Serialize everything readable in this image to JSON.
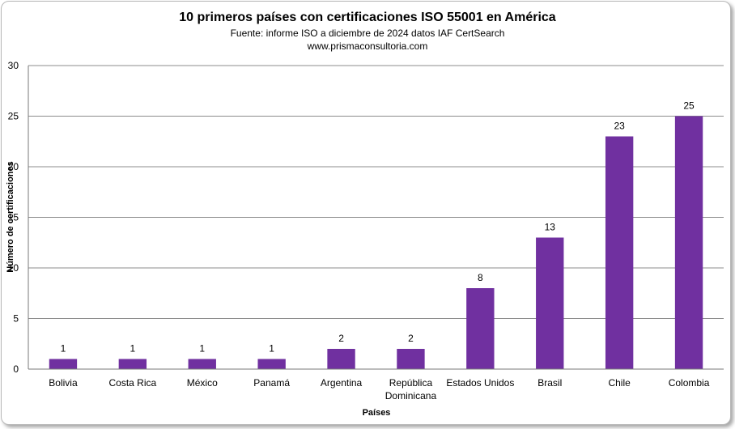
{
  "chart_data": {
    "type": "bar",
    "title": "10 primeros países con certificaciones ISO 55001 en América",
    "subtitle": "Fuente: informe  ISO a diciembre de 2024 datos IAF CertSearch",
    "source_url": "www.prismaconsultoria.com",
    "xlabel": "Países",
    "ylabel": "Número de certificaciones",
    "categories": [
      "Bolivia",
      "Costa Rica",
      "México",
      "Panamá",
      "Argentina",
      "República Dominicana",
      "Estados Unidos",
      "Brasil",
      "Chile",
      "Colombia"
    ],
    "category_lines": [
      [
        "Bolivia"
      ],
      [
        "Costa Rica"
      ],
      [
        "México"
      ],
      [
        "Panamá"
      ],
      [
        "Argentina"
      ],
      [
        "República",
        "Dominicana"
      ],
      [
        "Estados Unidos"
      ],
      [
        "Brasil"
      ],
      [
        "Chile"
      ],
      [
        "Colombia"
      ]
    ],
    "values": [
      1,
      1,
      1,
      1,
      2,
      2,
      8,
      13,
      23,
      25
    ],
    "ylim": [
      0,
      30
    ],
    "yticks": [
      0,
      5,
      10,
      15,
      20,
      25,
      30
    ],
    "grid": true,
    "legend": "none",
    "bar_color": "#7030a0"
  }
}
